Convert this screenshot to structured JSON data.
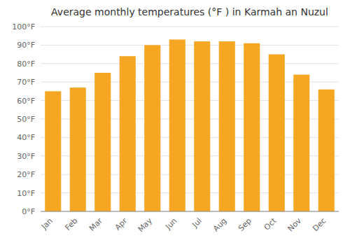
{
  "chart_data": {
    "type": "bar",
    "title": "Average monthly temperatures (°F ) in Karmah an Nuzul",
    "categories": [
      "Jan",
      "Feb",
      "Mar",
      "Apr",
      "May",
      "Jun",
      "Jul",
      "Aug",
      "Sep",
      "Oct",
      "Nov",
      "Dec"
    ],
    "values": [
      65,
      67,
      75,
      84,
      90,
      93,
      92,
      92,
      91,
      85,
      74,
      66
    ],
    "color": "#F5A623",
    "ylim": [
      0,
      100
    ],
    "yticks": [
      {
        "value": 0,
        "label": "0°F"
      },
      {
        "value": 10,
        "label": "10°F"
      },
      {
        "value": 20,
        "label": "20°F"
      },
      {
        "value": 30,
        "label": "30°F"
      },
      {
        "value": 40,
        "label": "40°F"
      },
      {
        "value": 50,
        "label": "50°F"
      },
      {
        "value": 60,
        "label": "60°F"
      },
      {
        "value": 70,
        "label": "70°F"
      },
      {
        "value": 80,
        "label": "80°F"
      },
      {
        "value": 90,
        "label": "90°F"
      },
      {
        "value": 100,
        "label": "100°F"
      }
    ],
    "grid": true
  }
}
